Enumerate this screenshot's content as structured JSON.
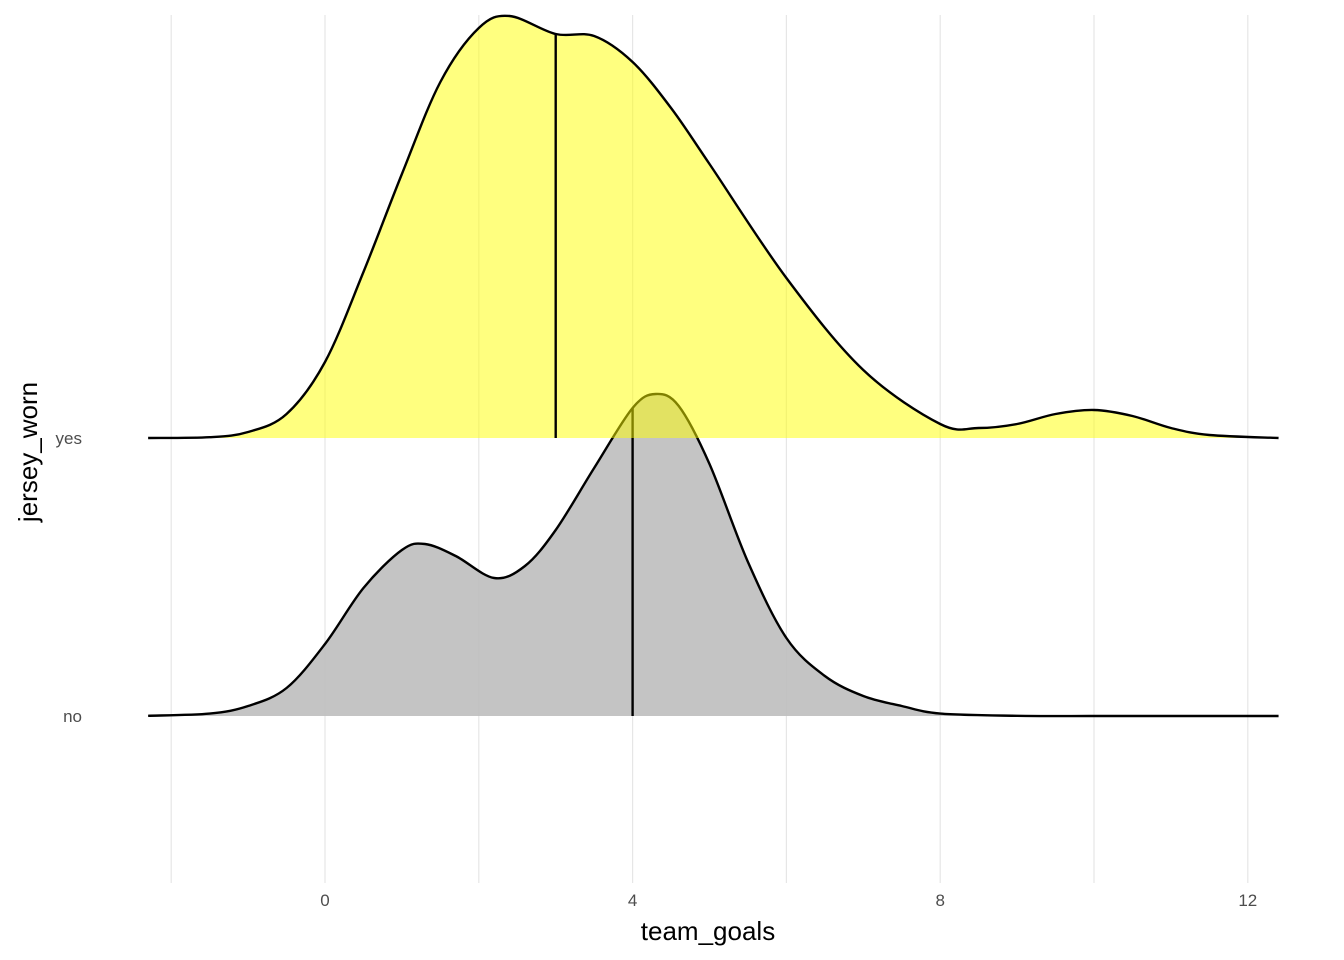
{
  "chart_data": {
    "type": "area",
    "subtype": "ridgeline-density",
    "xlabel": "team_goals",
    "ylabel": "jersey_worn",
    "xlim": [
      -2.4,
      12.4
    ],
    "x_ticks": [
      0,
      4,
      8,
      12
    ],
    "x_tick_labels": [
      "0",
      "4",
      "8",
      "12"
    ],
    "x_minor_gridlines": [
      -2,
      2,
      6,
      10
    ],
    "grid": true,
    "legend": "none",
    "categories": [
      "no",
      "yes"
    ],
    "series": [
      {
        "name": "no",
        "fill": "#bebebe",
        "fill_opacity": 0.9,
        "vline_x": 4.0,
        "x": [
          -2.3,
          -1.5,
          -1,
          -0.5,
          0,
          0.5,
          1,
          1.3,
          1.7,
          2.2,
          2.6,
          3,
          3.5,
          4,
          4.3,
          4.6,
          5,
          5.5,
          6,
          6.5,
          7,
          7.5,
          8,
          9,
          10,
          11,
          12,
          12.4
        ],
        "density": [
          0.001,
          0.012,
          0.05,
          0.14,
          0.36,
          0.64,
          0.83,
          0.86,
          0.8,
          0.69,
          0.75,
          0.93,
          1.24,
          1.54,
          1.61,
          1.55,
          1.26,
          0.77,
          0.39,
          0.2,
          0.1,
          0.05,
          0.012,
          0.001,
          0.0,
          0.0,
          0.0,
          0.0
        ]
      },
      {
        "name": "yes",
        "fill": "#ffff00",
        "fill_opacity": 0.5,
        "vline_x": 3.0,
        "x": [
          -2.3,
          -1.5,
          -1,
          -0.5,
          0,
          0.5,
          1,
          1.5,
          2,
          2.4,
          3,
          3.5,
          4,
          4.5,
          5,
          6,
          7,
          8,
          8.5,
          9,
          9.5,
          10,
          10.5,
          11,
          11.5,
          12.4
        ],
        "density": [
          0.0,
          0.004,
          0.03,
          0.12,
          0.38,
          0.83,
          1.32,
          1.78,
          2.05,
          2.11,
          2.02,
          2.01,
          1.88,
          1.65,
          1.37,
          0.8,
          0.34,
          0.07,
          0.05,
          0.07,
          0.12,
          0.14,
          0.11,
          0.05,
          0.015,
          0.0
        ]
      }
    ]
  }
}
